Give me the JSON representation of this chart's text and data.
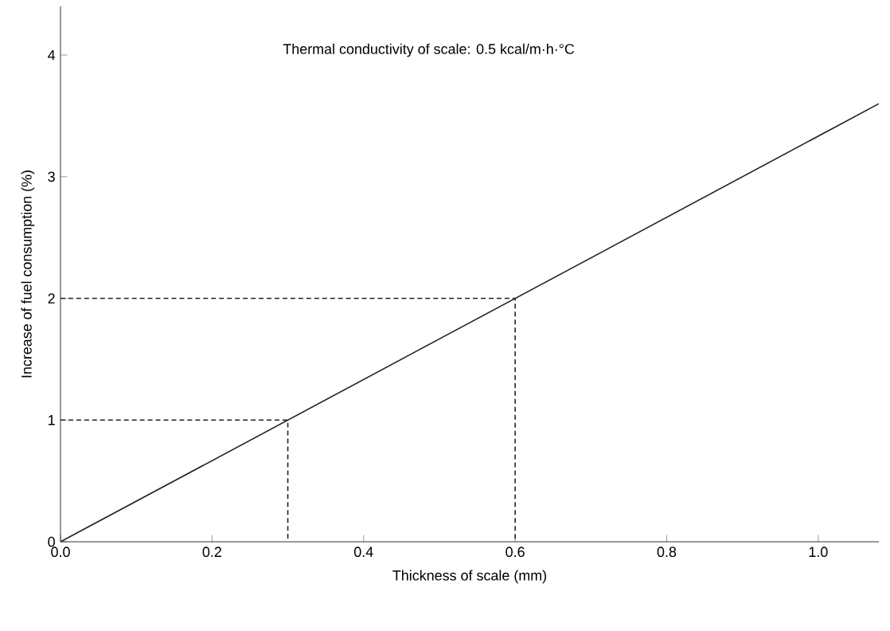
{
  "chart_data": {
    "type": "line",
    "xlabel": "Thickness of scale (mm)",
    "ylabel": "Increase of fuel consumption (%)",
    "annotations": [
      "Thermal conductivity of scale: 0.5 kcal/m·h·°C"
    ],
    "xlim": [
      0,
      1.08
    ],
    "ylim": [
      0,
      4.4
    ],
    "xticks": [
      {
        "value": 0,
        "label": "0.0"
      },
      {
        "value": 0.2,
        "label": "0.2"
      },
      {
        "value": 0.4,
        "label": "0.4"
      },
      {
        "value": 0.6,
        "label": "0.6"
      },
      {
        "value": 0.8,
        "label": "0.8"
      },
      {
        "value": 1.0,
        "label": "1.0"
      }
    ],
    "yticks": [
      0,
      1,
      2,
      3,
      4
    ],
    "grid": false,
    "marker": "none",
    "series": [
      {
        "color": "#222222",
        "line_style": "solid",
        "x": [
          0,
          1.08
        ],
        "values": [
          0,
          3.6
        ]
      },
      {
        "color": "#222222",
        "line_style": "dashed",
        "x": [
          0,
          0.3,
          0.3
        ],
        "values": [
          1,
          1,
          0
        ]
      },
      {
        "color": "#222222",
        "line_style": "dashed",
        "x": [
          0,
          0.6,
          0.6
        ],
        "values": [
          2,
          2,
          0
        ]
      }
    ]
  }
}
